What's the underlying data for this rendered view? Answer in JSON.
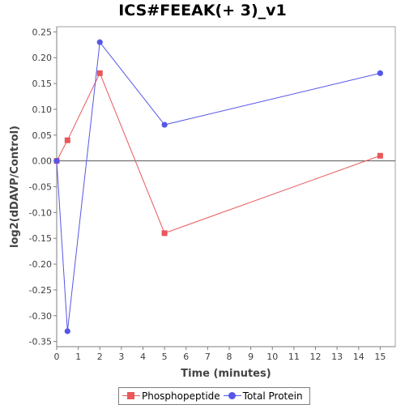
{
  "chart_data": {
    "type": "line",
    "title": "ICS#FEEAK(+ 3)_v1",
    "xlabel": "Time (minutes)",
    "ylabel": "log2(dDAVP/Control)",
    "xlim": [
      0,
      15.7
    ],
    "ylim": [
      -0.36,
      0.26
    ],
    "xticks": [
      0,
      1,
      2,
      3,
      4,
      5,
      6,
      7,
      8,
      9,
      10,
      11,
      12,
      13,
      14,
      15
    ],
    "yticks": [
      -0.35,
      -0.3,
      -0.25,
      -0.2,
      -0.15,
      -0.1,
      -0.05,
      0.0,
      0.05,
      0.1,
      0.15,
      0.2,
      0.25
    ],
    "ytick_labels": [
      "-0.35",
      "-0.30",
      "-0.25",
      "-0.20",
      "-0.15",
      "-0.10",
      "-0.05",
      "0.00",
      "0.05",
      "0.10",
      "0.15",
      "0.20",
      "0.25"
    ],
    "zero_line": true,
    "legend_position": "bottom",
    "series": [
      {
        "name": "Phosphopeptide",
        "color": "#e8585a",
        "marker": "square",
        "x": [
          0,
          0.5,
          2,
          5,
          15
        ],
        "y": [
          0.0,
          0.04,
          0.17,
          -0.14,
          0.01
        ]
      },
      {
        "name": "Total Protein",
        "color": "#5656e8",
        "marker": "circle",
        "x": [
          0,
          0.5,
          2,
          5,
          15
        ],
        "y": [
          0.0,
          -0.33,
          0.23,
          0.07,
          0.17
        ]
      }
    ]
  }
}
